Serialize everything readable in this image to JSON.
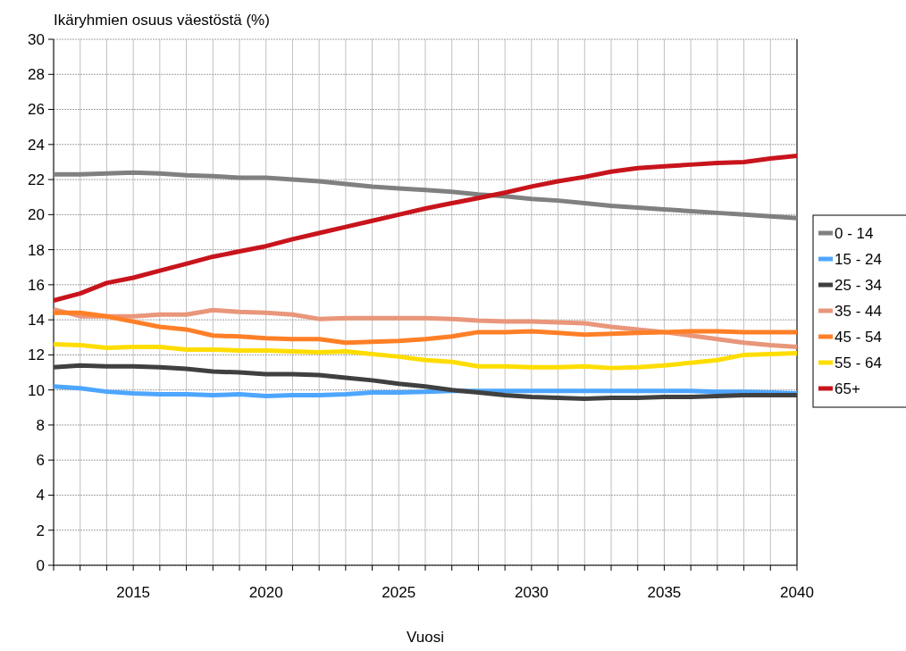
{
  "chart_data": {
    "type": "line",
    "title": "Ikäryhmien osuus väestöstä (%)",
    "xlabel": "Vuosi",
    "x": [
      2012,
      2013,
      2014,
      2015,
      2016,
      2017,
      2018,
      2019,
      2020,
      2021,
      2022,
      2023,
      2024,
      2025,
      2026,
      2027,
      2028,
      2029,
      2030,
      2031,
      2032,
      2033,
      2034,
      2035,
      2036,
      2037,
      2038,
      2039,
      2040
    ],
    "xlim": [
      2012,
      2040
    ],
    "xticks": [
      {
        "value": 2012,
        "label": null
      },
      {
        "value": 2013,
        "label": null
      },
      {
        "value": 2014,
        "label": null
      },
      2015,
      {
        "value": 2016,
        "label": null
      },
      {
        "value": 2017,
        "label": null
      },
      {
        "value": 2018,
        "label": null
      },
      {
        "value": 2019,
        "label": null
      },
      2020,
      {
        "value": 2021,
        "label": null
      },
      {
        "value": 2022,
        "label": null
      },
      {
        "value": 2023,
        "label": null
      },
      {
        "value": 2024,
        "label": null
      },
      2025,
      {
        "value": 2026,
        "label": null
      },
      {
        "value": 2027,
        "label": null
      },
      {
        "value": 2028,
        "label": null
      },
      {
        "value": 2029,
        "label": null
      },
      2030,
      {
        "value": 2031,
        "label": null
      },
      {
        "value": 2032,
        "label": null
      },
      {
        "value": 2033,
        "label": null
      },
      {
        "value": 2034,
        "label": null
      },
      2035,
      {
        "value": 2036,
        "label": null
      },
      {
        "value": 2037,
        "label": null
      },
      {
        "value": 2038,
        "label": null
      },
      {
        "value": 2039,
        "label": null
      },
      2040
    ],
    "ylim": [
      0,
      30
    ],
    "yticks": [
      0,
      2,
      4,
      6,
      8,
      10,
      12,
      14,
      16,
      18,
      20,
      22,
      24,
      26,
      28,
      30
    ],
    "grid": true,
    "legend": "right",
    "marker": "none",
    "line_style": "solid",
    "series": [
      {
        "name": "0 - 14",
        "color": "#808080",
        "values": [
          22.3,
          22.3,
          22.35,
          22.4,
          22.35,
          22.25,
          22.2,
          22.1,
          22.1,
          22.0,
          21.9,
          21.75,
          21.6,
          21.5,
          21.4,
          21.3,
          21.15,
          21.05,
          20.9,
          20.8,
          20.65,
          20.5,
          20.4,
          20.3,
          20.2,
          20.1,
          20.0,
          19.9,
          19.8
        ]
      },
      {
        "name": "15 - 24",
        "color": "#4da6ff",
        "values": [
          10.2,
          10.1,
          9.9,
          9.8,
          9.75,
          9.75,
          9.7,
          9.75,
          9.65,
          9.7,
          9.7,
          9.75,
          9.85,
          9.85,
          9.9,
          9.95,
          9.95,
          9.95,
          9.95,
          9.95,
          9.95,
          9.95,
          9.95,
          9.95,
          9.95,
          9.9,
          9.9,
          9.85,
          9.8
        ]
      },
      {
        "name": "25 - 34",
        "color": "#404040",
        "values": [
          11.3,
          11.4,
          11.35,
          11.35,
          11.3,
          11.2,
          11.05,
          11.0,
          10.9,
          10.9,
          10.85,
          10.7,
          10.55,
          10.35,
          10.2,
          10.0,
          9.85,
          9.7,
          9.6,
          9.55,
          9.5,
          9.55,
          9.55,
          9.6,
          9.6,
          9.65,
          9.7,
          9.7,
          9.7
        ]
      },
      {
        "name": "35 - 44",
        "color": "#e9967a",
        "values": [
          14.6,
          14.2,
          14.2,
          14.2,
          14.3,
          14.3,
          14.55,
          14.45,
          14.4,
          14.3,
          14.05,
          14.1,
          14.1,
          14.1,
          14.1,
          14.05,
          13.95,
          13.9,
          13.9,
          13.85,
          13.8,
          13.6,
          13.45,
          13.3,
          13.1,
          12.9,
          12.7,
          12.55,
          12.45
        ]
      },
      {
        "name": "45 - 54",
        "color": "#ff7f27",
        "values": [
          14.4,
          14.4,
          14.2,
          13.9,
          13.6,
          13.45,
          13.1,
          13.05,
          12.95,
          12.9,
          12.9,
          12.7,
          12.75,
          12.8,
          12.9,
          13.05,
          13.3,
          13.3,
          13.35,
          13.25,
          13.15,
          13.2,
          13.25,
          13.3,
          13.35,
          13.35,
          13.3,
          13.3,
          13.3
        ]
      },
      {
        "name": "55 - 64",
        "color": "#ffdd00",
        "values": [
          12.6,
          12.55,
          12.4,
          12.45,
          12.45,
          12.3,
          12.3,
          12.25,
          12.25,
          12.2,
          12.15,
          12.2,
          12.05,
          11.9,
          11.7,
          11.6,
          11.35,
          11.35,
          11.3,
          11.3,
          11.35,
          11.25,
          11.3,
          11.4,
          11.55,
          11.7,
          12.0,
          12.05,
          12.1
        ]
      },
      {
        "name": "65+",
        "color": "#c8141c",
        "values": [
          15.1,
          15.5,
          16.1,
          16.4,
          16.8,
          17.2,
          17.6,
          17.9,
          18.2,
          18.6,
          18.95,
          19.3,
          19.65,
          20.0,
          20.35,
          20.65,
          20.95,
          21.25,
          21.6,
          21.9,
          22.15,
          22.45,
          22.65,
          22.75,
          22.85,
          22.95,
          23.0,
          23.2,
          23.35
        ]
      }
    ]
  }
}
